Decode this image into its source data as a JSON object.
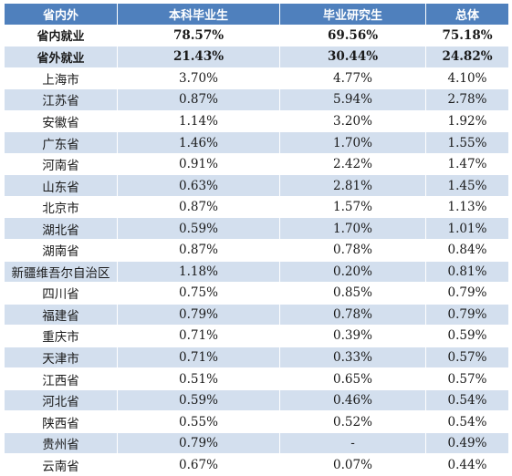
{
  "table": {
    "headers": [
      "省内外",
      "本科毕业生",
      "毕业研究生",
      "总体"
    ],
    "rows": [
      {
        "name": "省内就业",
        "undergrad": "78.57%",
        "grad": "69.56%",
        "total": "75.18%",
        "bold": true
      },
      {
        "name": "省外就业",
        "undergrad": "21.43%",
        "grad": "30.44%",
        "total": "24.82%",
        "bold": true
      },
      {
        "name": "上海市",
        "undergrad": "3.70%",
        "grad": "4.77%",
        "total": "4.10%"
      },
      {
        "name": "江苏省",
        "undergrad": "0.87%",
        "grad": "5.94%",
        "total": "2.78%"
      },
      {
        "name": "安徽省",
        "undergrad": "1.14%",
        "grad": "3.20%",
        "total": "1.92%"
      },
      {
        "name": "广东省",
        "undergrad": "1.46%",
        "grad": "1.70%",
        "total": "1.55%"
      },
      {
        "name": "河南省",
        "undergrad": "0.91%",
        "grad": "2.42%",
        "total": "1.47%"
      },
      {
        "name": "山东省",
        "undergrad": "0.63%",
        "grad": "2.81%",
        "total": "1.45%"
      },
      {
        "name": "北京市",
        "undergrad": "0.87%",
        "grad": "1.57%",
        "total": "1.13%"
      },
      {
        "name": "湖北省",
        "undergrad": "0.59%",
        "grad": "1.70%",
        "total": "1.01%"
      },
      {
        "name": "湖南省",
        "undergrad": "0.87%",
        "grad": "0.78%",
        "total": "0.84%"
      },
      {
        "name": "新疆维吾尔自治区",
        "undergrad": "1.18%",
        "grad": "0.20%",
        "total": "0.81%"
      },
      {
        "name": "四川省",
        "undergrad": "0.75%",
        "grad": "0.85%",
        "total": "0.79%"
      },
      {
        "name": "福建省",
        "undergrad": "0.79%",
        "grad": "0.78%",
        "total": "0.79%"
      },
      {
        "name": "重庆市",
        "undergrad": "0.71%",
        "grad": "0.39%",
        "total": "0.59%"
      },
      {
        "name": "天津市",
        "undergrad": "0.71%",
        "grad": "0.33%",
        "total": "0.57%"
      },
      {
        "name": "江西省",
        "undergrad": "0.51%",
        "grad": "0.65%",
        "total": "0.57%"
      },
      {
        "name": "河北省",
        "undergrad": "0.59%",
        "grad": "0.46%",
        "total": "0.54%"
      },
      {
        "name": "陕西省",
        "undergrad": "0.55%",
        "grad": "0.52%",
        "total": "0.54%"
      },
      {
        "name": "贵州省",
        "undergrad": "0.79%",
        "grad": "-",
        "total": "0.49%"
      },
      {
        "name": "云南省",
        "undergrad": "0.67%",
        "grad": "0.07%",
        "total": "0.44%"
      }
    ]
  },
  "colors": {
    "header_bg": "#4f80bd",
    "band_bg": "#d3dfee",
    "plain_bg": "#ffffff"
  }
}
